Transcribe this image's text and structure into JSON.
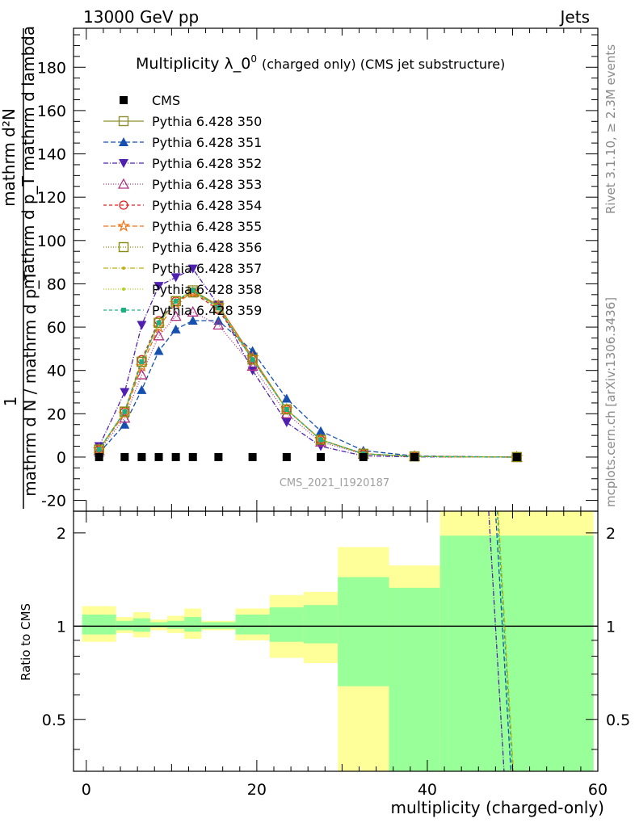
{
  "header": {
    "left": "13000 GeV pp",
    "right": "Jets"
  },
  "side_text": {
    "rivet": "Rivet 3.1.10, ≥ 2.3M events",
    "mcplots": "mcplots.cern.ch [arXiv:1306.3436]"
  },
  "chart_data": [
    {
      "type": "line",
      "title": "Multiplicity λ_0",
      "title_sup": "0",
      "title_small": "(charged only) (CMS jet substructure)",
      "ylabel_numerator": "mathrm d²N",
      "ylabel_denominator": "mathrm d p_T mathrm d lambda",
      "ylabel_prefix_num": "1",
      "ylabel_prefix_den": "mathrm d N / mathrm d p_T",
      "analysis_watermark": "CMS_2021_I1920187",
      "xlim": [
        -1.5,
        60
      ],
      "ylim": [
        -25,
        198
      ],
      "y_ticks": [
        -20,
        0,
        20,
        40,
        60,
        80,
        100,
        120,
        140,
        160,
        180
      ],
      "x_ticks": [
        0,
        20,
        40,
        60
      ],
      "x": [
        1.5,
        4.5,
        6.5,
        8.5,
        10.5,
        12.5,
        15.5,
        19.5,
        23.5,
        27.5,
        32.5,
        38.5,
        50.5
      ],
      "cms": [
        0,
        0,
        0,
        0,
        0,
        0,
        0,
        0,
        0,
        0,
        0,
        0,
        0
      ],
      "series": [
        {
          "name": "Pythia 6.428 350",
          "color": "#8f8f30",
          "dash": "",
          "marker": "square-open",
          "values": [
            3.5,
            21,
            44,
            62,
            72,
            77,
            70,
            46,
            22,
            8,
            1.5,
            0.3,
            0
          ]
        },
        {
          "name": "Pythia 6.428 351",
          "color": "#1550b0",
          "dash": "6,3",
          "marker": "triangle-up",
          "values": [
            2,
            15,
            31,
            49,
            59,
            63,
            63,
            49,
            27,
            12,
            3,
            0.5,
            0
          ]
        },
        {
          "name": "Pythia 6.428 352",
          "color": "#5020b0",
          "dash": "6,2,1,2",
          "marker": "triangle-down",
          "values": [
            5,
            30,
            61,
            79,
            83,
            87,
            70,
            40,
            16,
            5,
            0.6,
            0.1,
            0
          ]
        },
        {
          "name": "Pythia 6.428 353",
          "color": "#b03080",
          "dash": "1,2",
          "marker": "triangle-open",
          "values": [
            3,
            18,
            38,
            56,
            65,
            67,
            61,
            42,
            20,
            7,
            1.4,
            0.3,
            0
          ]
        },
        {
          "name": "Pythia 6.428 354",
          "color": "#e02020",
          "dash": "4,3",
          "marker": "circle-open",
          "values": [
            3.5,
            21,
            45,
            63,
            72,
            76,
            68,
            45,
            22,
            8,
            1.5,
            0.3,
            0
          ]
        },
        {
          "name": "Pythia 6.428 355",
          "color": "#f07010",
          "dash": "6,3",
          "marker": "star-open",
          "values": [
            3.5,
            20,
            42,
            60,
            71,
            76,
            70,
            46,
            22,
            8,
            1.5,
            0.3,
            0
          ]
        },
        {
          "name": "Pythia 6.428 356",
          "color": "#8a8a10",
          "dash": "1,2",
          "marker": "square-open",
          "values": [
            3.5,
            21,
            44,
            62,
            72,
            76,
            69,
            45,
            22,
            8,
            1.5,
            0.3,
            0
          ]
        },
        {
          "name": "Pythia 6.428 357",
          "color": "#c0b010",
          "dash": "6,2,1,2",
          "marker": "dot",
          "values": [
            3.5,
            21,
            44,
            62,
            72,
            77,
            69,
            45,
            22,
            8,
            1.5,
            0.3,
            0
          ]
        },
        {
          "name": "Pythia 6.428 358",
          "color": "#b0d020",
          "dash": "1,2",
          "marker": "dot",
          "values": [
            3.5,
            21,
            44,
            62,
            72,
            77,
            69,
            45,
            22,
            8,
            1.5,
            0.3,
            0
          ]
        },
        {
          "name": "Pythia 6.428 359",
          "color": "#20b080",
          "dash": "4,3",
          "marker": "square-filled",
          "values": [
            3.5,
            21,
            44,
            62,
            72,
            77,
            69,
            45,
            22,
            8,
            1.5,
            0.3,
            0
          ]
        }
      ],
      "legend_data_label": "CMS",
      "legend_position": "top-left"
    },
    {
      "type": "area",
      "ylabel": "Ratio to CMS",
      "xlabel": "multiplicity (charged-only)",
      "ylim": [
        0.34,
        2.35
      ],
      "xlim": [
        -1.5,
        60
      ],
      "y_ticks": [
        0.5,
        1,
        2
      ],
      "x_ticks": [
        0,
        20,
        40,
        60
      ],
      "bins": [
        {
          "x0": -0.5,
          "x1": 3.5,
          "yel_lo": 0.89,
          "yel_hi": 1.16,
          "grn_lo": 0.94,
          "grn_hi": 1.09
        },
        {
          "x0": 3.5,
          "x1": 5.5,
          "yel_lo": 0.95,
          "yel_hi": 1.07,
          "grn_lo": 0.97,
          "grn_hi": 1.04
        },
        {
          "x0": 5.5,
          "x1": 7.5,
          "yel_lo": 0.92,
          "yel_hi": 1.11,
          "grn_lo": 0.96,
          "grn_hi": 1.06
        },
        {
          "x0": 7.5,
          "x1": 9.5,
          "yel_lo": 0.97,
          "yel_hi": 1.05,
          "grn_lo": 0.99,
          "grn_hi": 1.03
        },
        {
          "x0": 9.5,
          "x1": 11.5,
          "yel_lo": 0.95,
          "yel_hi": 1.08,
          "grn_lo": 0.98,
          "grn_hi": 1.04
        },
        {
          "x0": 11.5,
          "x1": 13.5,
          "yel_lo": 0.91,
          "yel_hi": 1.14,
          "grn_lo": 0.96,
          "grn_hi": 1.07
        },
        {
          "x0": 13.5,
          "x1": 17.5,
          "yel_lo": 0.97,
          "yel_hi": 1.04,
          "grn_lo": 0.98,
          "grn_hi": 1.03
        },
        {
          "x0": 17.5,
          "x1": 21.5,
          "yel_lo": 0.9,
          "yel_hi": 1.14,
          "grn_lo": 0.94,
          "grn_hi": 1.09
        },
        {
          "x0": 21.5,
          "x1": 25.5,
          "yel_lo": 0.79,
          "yel_hi": 1.26,
          "grn_lo": 0.89,
          "grn_hi": 1.15
        },
        {
          "x0": 25.5,
          "x1": 29.5,
          "yel_lo": 0.76,
          "yel_hi": 1.29,
          "grn_lo": 0.88,
          "grn_hi": 1.17
        },
        {
          "x0": 29.5,
          "x1": 35.5,
          "yel_lo": 0.34,
          "yel_hi": 1.8,
          "grn_lo": 0.64,
          "grn_hi": 1.44
        },
        {
          "x0": 35.5,
          "x1": 41.5,
          "yel_lo": 0.43,
          "yel_hi": 1.57,
          "grn_lo": 0.34,
          "grn_hi": 1.33
        },
        {
          "x0": 41.5,
          "x1": 59.5,
          "yel_lo": 0.34,
          "yel_hi": 2.35,
          "grn_lo": 0.34,
          "grn_hi": 1.96
        }
      ],
      "band_colors": {
        "yellow": "#ffff99",
        "green": "#99ff99"
      }
    }
  ]
}
